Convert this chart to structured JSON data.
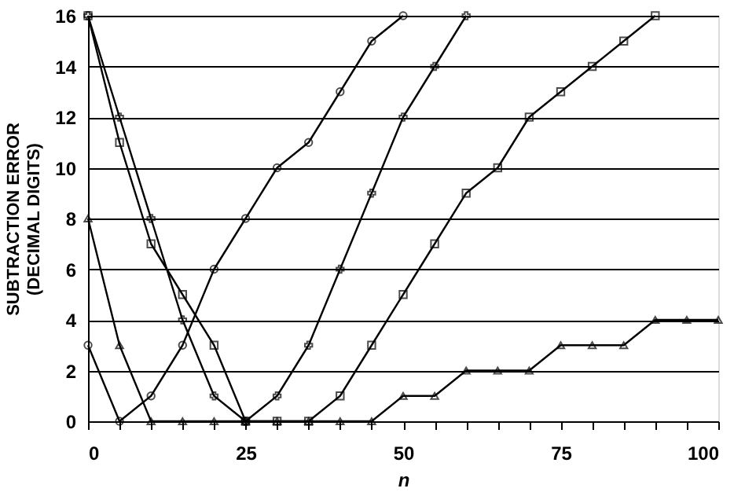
{
  "chart_data": {
    "type": "line",
    "xlabel": "n",
    "ylabel": "SUBTRACTION ERROR\n(DECIMAL DIGITS)",
    "x": [
      0,
      5,
      10,
      15,
      20,
      25,
      30,
      35,
      40,
      45,
      50,
      55,
      60,
      65,
      70,
      75,
      80,
      85,
      90,
      95,
      100
    ],
    "series": [
      {
        "color": "#000000",
        "marker": "circle",
        "values": [
          3,
          0,
          1,
          3,
          6,
          8,
          10,
          11,
          13,
          15,
          16,
          null,
          null,
          null,
          null,
          null,
          null,
          null,
          null,
          null,
          null
        ]
      },
      {
        "color": "#000000",
        "marker": "cross",
        "values": [
          16,
          12,
          8,
          4,
          1,
          0,
          1,
          3,
          6,
          9,
          12,
          14,
          16,
          null,
          null,
          null,
          null,
          null,
          null,
          null,
          null
        ]
      },
      {
        "color": "#000000",
        "marker": "square",
        "values": [
          16,
          11,
          7,
          5,
          3,
          0,
          0,
          0,
          1,
          3,
          5,
          7,
          9,
          10,
          12,
          13,
          14,
          15,
          16,
          null,
          null
        ]
      },
      {
        "color": "#000000",
        "marker": "triangle",
        "values": [
          8,
          3,
          0,
          0,
          0,
          0,
          0,
          0,
          0,
          0,
          1,
          1,
          2,
          2,
          2,
          3,
          3,
          3,
          4,
          4,
          4
        ]
      }
    ],
    "xlim": [
      0,
      100
    ],
    "xticks": [
      0,
      {
        "value": 5,
        "label": null
      },
      {
        "value": 10,
        "label": null
      },
      {
        "value": 15,
        "label": null
      },
      {
        "value": 20,
        "label": null
      },
      25,
      {
        "value": 30,
        "label": null
      },
      {
        "value": 35,
        "label": null
      },
      {
        "value": 40,
        "label": null
      },
      {
        "value": 45,
        "label": null
      },
      50,
      {
        "value": 55,
        "label": null
      },
      {
        "value": 60,
        "label": null
      },
      {
        "value": 65,
        "label": null
      },
      {
        "value": 70,
        "label": null
      },
      75,
      {
        "value": 80,
        "label": null
      },
      {
        "value": 85,
        "label": null
      },
      {
        "value": 90,
        "label": null
      },
      {
        "value": 95,
        "label": null
      },
      100
    ],
    "ylim": [
      0,
      16
    ],
    "yticks": [
      0,
      2,
      4,
      6,
      8,
      10,
      12,
      14,
      16
    ],
    "grid": "y",
    "line_style": "solid"
  }
}
